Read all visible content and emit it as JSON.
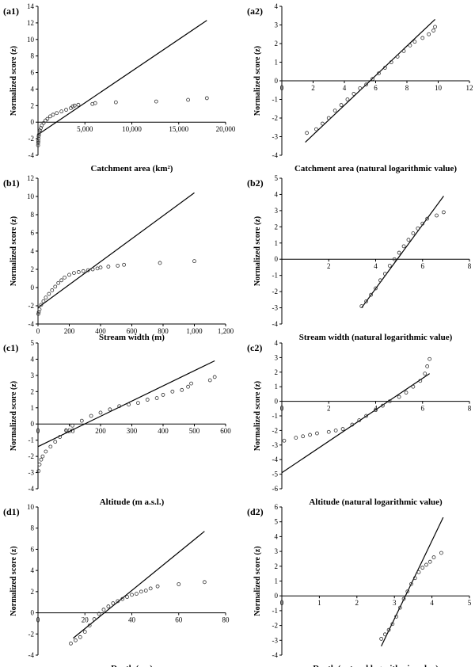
{
  "figure": {
    "panels": [
      {
        "panel_label": "(a1)",
        "xlabel": "Catchment area (km²)",
        "ylabel": "Normalized score (z)",
        "xlim": [
          0,
          20000
        ],
        "ylim": [
          -4,
          14
        ],
        "xticks": [
          {
            "v": 5000,
            "t": "5,000"
          },
          {
            "v": 10000,
            "t": "10,000"
          },
          {
            "v": 15000,
            "t": "15,000"
          },
          {
            "v": 20000,
            "t": "20,000"
          }
        ],
        "yticks": [
          {
            "v": -4,
            "t": "-4"
          },
          {
            "v": -2,
            "t": "-2"
          },
          {
            "v": 0,
            "t": "0"
          },
          {
            "v": 2,
            "t": "2"
          },
          {
            "v": 4,
            "t": "4"
          },
          {
            "v": 6,
            "t": "6"
          },
          {
            "v": 8,
            "t": "8"
          },
          {
            "v": 10,
            "t": "10"
          },
          {
            "v": 12,
            "t": "12"
          },
          {
            "v": 14,
            "t": "14"
          }
        ]
      },
      {
        "panel_label": "(a2)",
        "xlabel": "Catchment area (natural logarithmic value)",
        "ylabel": "Normalized score (z)",
        "xlim": [
          0,
          12
        ],
        "ylim": [
          -4,
          4
        ],
        "xticks": [
          {
            "v": 0,
            "t": "0"
          },
          {
            "v": 2,
            "t": "2"
          },
          {
            "v": 4,
            "t": "4"
          },
          {
            "v": 6,
            "t": "6"
          },
          {
            "v": 8,
            "t": "8"
          },
          {
            "v": 10,
            "t": "10"
          },
          {
            "v": 12,
            "t": "12"
          }
        ],
        "yticks": [
          {
            "v": -4,
            "t": "-4"
          },
          {
            "v": -3,
            "t": "-3"
          },
          {
            "v": -2,
            "t": "-2"
          },
          {
            "v": -1,
            "t": "-1"
          },
          {
            "v": 0,
            "t": "0"
          },
          {
            "v": 1,
            "t": "1"
          },
          {
            "v": 2,
            "t": "2"
          },
          {
            "v": 3,
            "t": "3"
          },
          {
            "v": 4,
            "t": "4"
          }
        ]
      },
      {
        "panel_label": "(b1)",
        "xlabel": "Stream width (m)",
        "ylabel": "Normalized score (z)",
        "xlim": [
          0,
          1200
        ],
        "ylim": [
          -4,
          12
        ],
        "xticks": [
          {
            "v": 0,
            "t": "0"
          },
          {
            "v": 200,
            "t": "200"
          },
          {
            "v": 400,
            "t": "400"
          },
          {
            "v": 600,
            "t": "600"
          },
          {
            "v": 800,
            "t": "800"
          },
          {
            "v": 1000,
            "t": "1,000"
          },
          {
            "v": 1200,
            "t": "1,200"
          }
        ],
        "yticks": [
          {
            "v": -4,
            "t": "-4"
          },
          {
            "v": -2,
            "t": "-2"
          },
          {
            "v": 0,
            "t": "0"
          },
          {
            "v": 2,
            "t": "2"
          },
          {
            "v": 4,
            "t": "4"
          },
          {
            "v": 6,
            "t": "6"
          },
          {
            "v": 8,
            "t": "8"
          },
          {
            "v": 10,
            "t": "10"
          },
          {
            "v": 12,
            "t": "12"
          }
        ]
      },
      {
        "panel_label": "(b2)",
        "xlabel": "Stream width (natural logarithmic value)",
        "ylabel": "Normalized score (z)",
        "xlim": [
          0,
          8
        ],
        "ylim": [
          -4,
          5
        ],
        "xticks": [
          {
            "v": 2,
            "t": "2"
          },
          {
            "v": 4,
            "t": "4"
          },
          {
            "v": 6,
            "t": "6"
          },
          {
            "v": 8,
            "t": "8"
          }
        ],
        "yticks": [
          {
            "v": -4,
            "t": "-4"
          },
          {
            "v": -3,
            "t": "-3"
          },
          {
            "v": -2,
            "t": "-2"
          },
          {
            "v": -1,
            "t": "-1"
          },
          {
            "v": 0,
            "t": "0"
          },
          {
            "v": 1,
            "t": "1"
          },
          {
            "v": 2,
            "t": "2"
          },
          {
            "v": 3,
            "t": "3"
          },
          {
            "v": 4,
            "t": "4"
          },
          {
            "v": 5,
            "t": "5"
          }
        ]
      },
      {
        "panel_label": "(c1)",
        "xlabel": "Altitude (m a.s.l.)",
        "ylabel": "Normalized score (z)",
        "xlim": [
          0,
          600
        ],
        "ylim": [
          -4,
          5
        ],
        "xticks": [
          {
            "v": 0,
            "t": "0"
          },
          {
            "v": 100,
            "t": "100"
          },
          {
            "v": 200,
            "t": "200"
          },
          {
            "v": 300,
            "t": "300"
          },
          {
            "v": 400,
            "t": "400"
          },
          {
            "v": 500,
            "t": "500"
          },
          {
            "v": 600,
            "t": "600"
          }
        ],
        "yticks": [
          {
            "v": -4,
            "t": "-4"
          },
          {
            "v": -3,
            "t": "-3"
          },
          {
            "v": -2,
            "t": "-2"
          },
          {
            "v": -1,
            "t": "-1"
          },
          {
            "v": 0,
            "t": "0"
          },
          {
            "v": 1,
            "t": "1"
          },
          {
            "v": 2,
            "t": "2"
          },
          {
            "v": 3,
            "t": "3"
          },
          {
            "v": 4,
            "t": "4"
          },
          {
            "v": 5,
            "t": "5"
          }
        ]
      },
      {
        "panel_label": "(c2)",
        "xlabel": "Altitude (natural logarithmic value)",
        "ylabel": "Normalized score (z)",
        "xlim": [
          0,
          8
        ],
        "ylim": [
          -6,
          4
        ],
        "xticks": [
          {
            "v": 0,
            "t": "0"
          },
          {
            "v": 2,
            "t": "2"
          },
          {
            "v": 4,
            "t": "4"
          },
          {
            "v": 6,
            "t": "6"
          },
          {
            "v": 8,
            "t": "8"
          }
        ],
        "yticks": [
          {
            "v": -6,
            "t": "-6"
          },
          {
            "v": -5,
            "t": "-5"
          },
          {
            "v": -4,
            "t": "-4"
          },
          {
            "v": -3,
            "t": "-3"
          },
          {
            "v": -2,
            "t": "-2"
          },
          {
            "v": -1,
            "t": "-1"
          },
          {
            "v": 0,
            "t": "0"
          },
          {
            "v": 1,
            "t": "1"
          },
          {
            "v": 2,
            "t": "2"
          },
          {
            "v": 3,
            "t": "3"
          },
          {
            "v": 4,
            "t": "4"
          }
        ]
      },
      {
        "panel_label": "(d1)",
        "xlabel": "Depth (cm)",
        "ylabel": "Normalized score (z)",
        "xlim": [
          0,
          80
        ],
        "ylim": [
          -4,
          10
        ],
        "xticks": [
          {
            "v": 0,
            "t": "0"
          },
          {
            "v": 20,
            "t": "20"
          },
          {
            "v": 40,
            "t": "40"
          },
          {
            "v": 60,
            "t": "60"
          },
          {
            "v": 80,
            "t": "80"
          }
        ],
        "yticks": [
          {
            "v": -4,
            "t": "-4"
          },
          {
            "v": -2,
            "t": "-2"
          },
          {
            "v": 0,
            "t": "0"
          },
          {
            "v": 2,
            "t": "2"
          },
          {
            "v": 4,
            "t": "4"
          },
          {
            "v": 6,
            "t": "6"
          },
          {
            "v": 8,
            "t": "8"
          },
          {
            "v": 10,
            "t": "10"
          }
        ]
      },
      {
        "panel_label": "(d2)",
        "xlabel": "Depth (natural logarithmic value)",
        "ylabel": "Normalized score (z)",
        "xlim": [
          0,
          5
        ],
        "ylim": [
          -4,
          6
        ],
        "xticks": [
          {
            "v": 0,
            "t": "0"
          },
          {
            "v": 1,
            "t": "1"
          },
          {
            "v": 2,
            "t": "2"
          },
          {
            "v": 3,
            "t": "3"
          },
          {
            "v": 4,
            "t": "4"
          },
          {
            "v": 5,
            "t": "5"
          }
        ],
        "yticks": [
          {
            "v": -4,
            "t": "-4"
          },
          {
            "v": -3,
            "t": "-3"
          },
          {
            "v": -2,
            "t": "-2"
          },
          {
            "v": -1,
            "t": "-1"
          },
          {
            "v": 0,
            "t": "0"
          },
          {
            "v": 1,
            "t": "1"
          },
          {
            "v": 2,
            "t": "2"
          },
          {
            "v": 3,
            "t": "3"
          },
          {
            "v": 4,
            "t": "4"
          },
          {
            "v": 5,
            "t": "5"
          },
          {
            "v": 6,
            "t": "6"
          }
        ]
      }
    ]
  },
  "chart_data": [
    {
      "type": "scatter",
      "panel": "(a1)",
      "x": [
        10,
        20,
        30,
        50,
        70,
        100,
        150,
        200,
        300,
        400,
        600,
        800,
        1000,
        1300,
        1600,
        2000,
        2500,
        3000,
        3500,
        3700,
        3900,
        4300,
        5800,
        6100,
        8300,
        12600,
        16000,
        18000
      ],
      "y": [
        -2.8,
        -2.5,
        -2.3,
        -2.0,
        -1.7,
        -1.5,
        -1.2,
        -1.0,
        -0.7,
        -0.4,
        -0.1,
        0.2,
        0.4,
        0.7,
        0.9,
        1.1,
        1.3,
        1.5,
        1.7,
        1.9,
        2.0,
        2.1,
        2.2,
        2.3,
        2.4,
        2.5,
        2.7,
        2.9
      ],
      "fit_line": {
        "x": [
          0,
          18000
        ],
        "y": [
          -1.5,
          12.3
        ]
      }
    },
    {
      "type": "scatter",
      "panel": "(a2)",
      "x": [
        1.6,
        2.2,
        2.6,
        3.0,
        3.4,
        3.8,
        4.2,
        4.6,
        5.0,
        5.4,
        5.8,
        6.2,
        6.6,
        7.0,
        7.4,
        7.8,
        8.2,
        8.5,
        9.0,
        9.4,
        9.7,
        9.8
      ],
      "y": [
        -2.8,
        -2.6,
        -2.3,
        -2.0,
        -1.6,
        -1.3,
        -1.0,
        -0.7,
        -0.4,
        -0.2,
        0.1,
        0.4,
        0.7,
        1.0,
        1.3,
        1.6,
        1.9,
        2.1,
        2.3,
        2.5,
        2.7,
        2.9
      ],
      "fit_line": {
        "x": [
          1.5,
          9.8
        ],
        "y": [
          -3.3,
          3.3
        ]
      }
    },
    {
      "type": "scatter",
      "panel": "(b1)",
      "x": [
        2,
        5,
        10,
        20,
        35,
        50,
        70,
        90,
        110,
        130,
        150,
        170,
        200,
        230,
        260,
        290,
        320,
        350,
        380,
        400,
        450,
        510,
        550,
        780,
        1000
      ],
      "y": [
        -2.9,
        -2.7,
        -2.4,
        -1.9,
        -1.5,
        -1.1,
        -0.7,
        -0.3,
        0.1,
        0.5,
        0.8,
        1.1,
        1.4,
        1.6,
        1.7,
        1.8,
        1.9,
        2.0,
        2.1,
        2.2,
        2.3,
        2.4,
        2.5,
        2.7,
        2.9
      ],
      "fit_line": {
        "x": [
          0,
          1000
        ],
        "y": [
          -2.2,
          10.4
        ]
      }
    },
    {
      "type": "scatter",
      "panel": "(b2)",
      "x": [
        3.4,
        3.6,
        3.8,
        4.0,
        4.2,
        4.4,
        4.6,
        4.8,
        5.0,
        5.2,
        5.4,
        5.6,
        5.8,
        6.0,
        6.2,
        6.6,
        6.9
      ],
      "y": [
        -2.9,
        -2.6,
        -2.2,
        -1.8,
        -1.3,
        -0.9,
        -0.4,
        0.0,
        0.4,
        0.8,
        1.2,
        1.6,
        1.9,
        2.2,
        2.5,
        2.7,
        2.9
      ],
      "fit_line": {
        "x": [
          3.4,
          6.9
        ],
        "y": [
          -3.0,
          3.9
        ]
      }
    },
    {
      "type": "scatter",
      "panel": "(c1)",
      "x": [
        2,
        5,
        10,
        15,
        25,
        40,
        55,
        70,
        90,
        110,
        140,
        170,
        200,
        230,
        260,
        290,
        320,
        350,
        380,
        400,
        430,
        460,
        480,
        490,
        550,
        565
      ],
      "y": [
        -2.9,
        -2.5,
        -2.2,
        -2.0,
        -1.7,
        -1.4,
        -1.1,
        -0.8,
        -0.4,
        -0.1,
        0.2,
        0.5,
        0.7,
        0.9,
        1.1,
        1.2,
        1.3,
        1.5,
        1.6,
        1.8,
        2.0,
        2.1,
        2.3,
        2.5,
        2.7,
        2.9
      ],
      "fit_line": {
        "x": [
          0,
          565
        ],
        "y": [
          -1.4,
          3.9
        ]
      }
    },
    {
      "type": "scatter",
      "panel": "(c2)",
      "x": [
        0.1,
        0.6,
        0.9,
        1.2,
        1.5,
        2.0,
        2.3,
        2.6,
        3.0,
        3.3,
        3.6,
        4.0,
        4.3,
        4.6,
        5.0,
        5.3,
        5.6,
        5.9,
        6.1,
        6.2,
        6.3
      ],
      "y": [
        -2.7,
        -2.5,
        -2.4,
        -2.3,
        -2.2,
        -2.1,
        -2.0,
        -1.9,
        -1.6,
        -1.3,
        -1.0,
        -0.6,
        -0.3,
        0.0,
        0.3,
        0.6,
        1.0,
        1.4,
        1.9,
        2.4,
        2.9
      ],
      "fit_line": {
        "x": [
          0,
          6.3
        ],
        "y": [
          -4.9,
          1.9
        ]
      }
    },
    {
      "type": "scatter",
      "panel": "(d1)",
      "x": [
        14,
        16,
        18,
        20,
        22,
        24,
        26,
        28,
        30,
        32,
        34,
        36,
        38,
        40,
        42,
        44,
        46,
        48,
        51,
        60,
        71
      ],
      "y": [
        -2.9,
        -2.6,
        -2.3,
        -1.8,
        -1.2,
        -0.6,
        -0.1,
        0.3,
        0.6,
        0.9,
        1.1,
        1.3,
        1.5,
        1.7,
        1.8,
        2.0,
        2.1,
        2.3,
        2.5,
        2.7,
        2.9
      ],
      "fit_line": {
        "x": [
          15,
          71
        ],
        "y": [
          -2.4,
          7.7
        ]
      }
    },
    {
      "type": "scatter",
      "panel": "(d2)",
      "x": [
        2.65,
        2.75,
        2.85,
        2.95,
        3.05,
        3.15,
        3.25,
        3.35,
        3.45,
        3.55,
        3.65,
        3.75,
        3.85,
        3.95,
        4.05,
        4.25
      ],
      "y": [
        -2.9,
        -2.6,
        -2.3,
        -1.9,
        -1.4,
        -0.8,
        -0.2,
        0.3,
        0.8,
        1.2,
        1.6,
        1.9,
        2.1,
        2.3,
        2.6,
        2.9
      ],
      "fit_line": {
        "x": [
          2.65,
          4.3
        ],
        "y": [
          -3.4,
          5.3
        ]
      }
    }
  ]
}
